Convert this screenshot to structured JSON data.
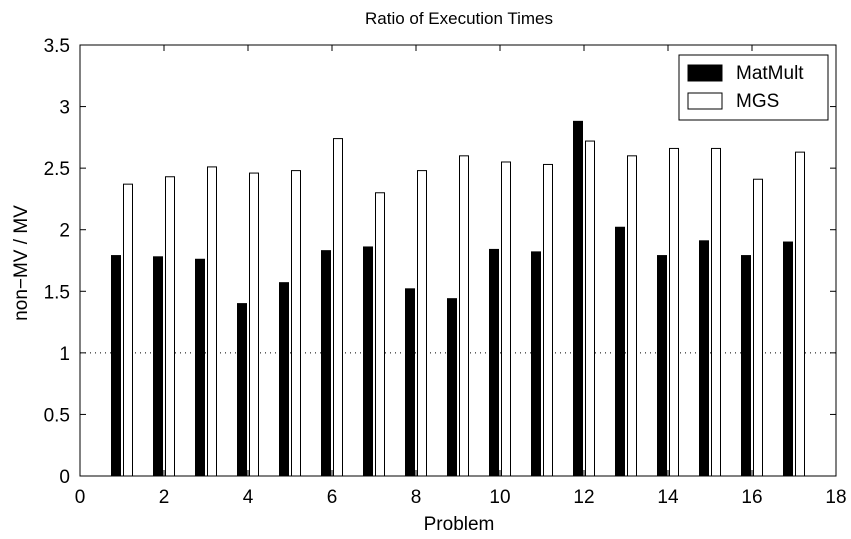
{
  "chart_data": {
    "type": "bar",
    "title": "Ratio of Execution Times",
    "xlabel": "Problem",
    "ylabel": "non−MV / MV",
    "xlim": [
      0,
      18
    ],
    "ylim": [
      0,
      3.5
    ],
    "xticks": [
      0,
      2,
      4,
      6,
      8,
      10,
      12,
      14,
      16,
      18
    ],
    "xtick_labels": [
      "0",
      "2",
      "4",
      "6",
      "8",
      "10",
      "12",
      "14",
      "16",
      "18"
    ],
    "yticks": [
      0,
      0.5,
      1,
      1.5,
      2,
      2.5,
      3,
      3.5
    ],
    "ytick_labels": [
      "0",
      "0.5",
      "1",
      "1.5",
      "2",
      "2.5",
      "3",
      "3.5"
    ],
    "grid": false,
    "reference_line": {
      "y": 1,
      "style": "dotted"
    },
    "legend_position": "top-right",
    "categories": [
      1,
      2,
      3,
      4,
      5,
      6,
      7,
      8,
      9,
      10,
      11,
      12,
      13,
      14,
      15,
      16,
      17
    ],
    "series": [
      {
        "name": "MatMult",
        "color": "#000000",
        "fill": "#000000",
        "values": [
          1.79,
          1.78,
          1.76,
          1.4,
          1.57,
          1.83,
          1.86,
          1.52,
          1.44,
          1.84,
          1.82,
          2.88,
          2.02,
          1.79,
          1.91,
          1.79,
          1.9
        ]
      },
      {
        "name": "MGS",
        "color": "#000000",
        "fill": "#ffffff",
        "values": [
          2.37,
          2.43,
          2.51,
          2.46,
          2.48,
          2.74,
          2.3,
          2.48,
          2.6,
          2.55,
          2.53,
          2.72,
          2.6,
          2.66,
          2.66,
          2.41,
          2.63
        ]
      }
    ]
  }
}
